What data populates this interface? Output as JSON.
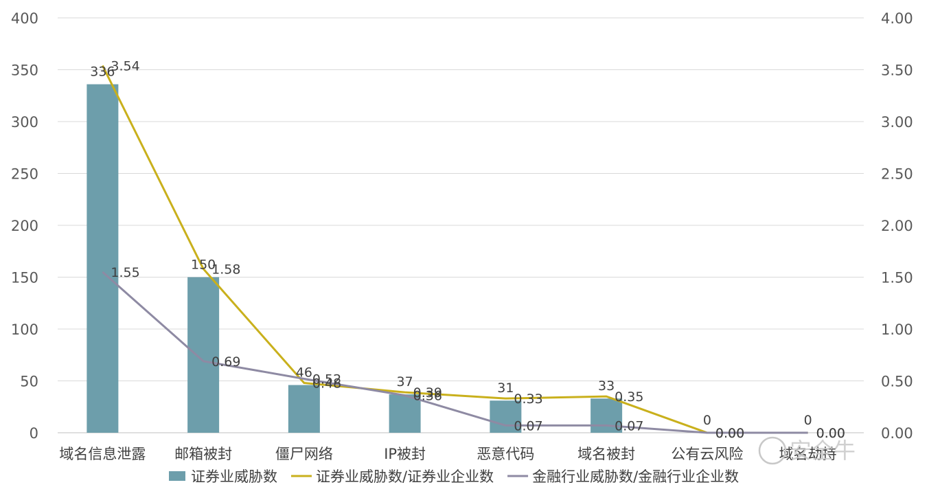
{
  "chart_data": {
    "type": "bar",
    "categories": [
      "域名信息泄露",
      "邮箱被封",
      "僵尸网络",
      "IP被封",
      "恶意代码",
      "域名被封",
      "公有云风险",
      "域名劫持"
    ],
    "series": [
      {
        "name": "证券业威胁数",
        "type": "bar",
        "axis": "left",
        "color": "#6d9eab",
        "values": [
          336,
          150,
          46,
          37,
          31,
          33,
          0,
          0
        ],
        "labels": [
          "336",
          "150",
          "46",
          "37",
          "31",
          "33",
          "0",
          "0"
        ]
      },
      {
        "name": "证券业威胁数/证券业企业数",
        "type": "line",
        "axis": "right",
        "color": "#c9b01c",
        "values": [
          3.54,
          1.58,
          0.48,
          0.39,
          0.33,
          0.35,
          0.0,
          0.0
        ],
        "labels": [
          "3.54",
          "1.58",
          "0.48",
          "0.39",
          "0.33",
          "0.35",
          "0.00",
          "0.00"
        ]
      },
      {
        "name": "金融行业威胁数/金融行业企业数",
        "type": "line",
        "axis": "right",
        "color": "#8e8aa3",
        "values": [
          1.55,
          0.69,
          0.52,
          0.36,
          0.07,
          0.07,
          0.0,
          0.0
        ],
        "labels": [
          "1.55",
          "0.69",
          "0.52",
          "0.36",
          "0.07",
          "0.07",
          "0.00",
          "0.00"
        ]
      }
    ],
    "y_left": {
      "range": [
        0,
        400
      ],
      "ticks": [
        "0",
        "50",
        "100",
        "150",
        "200",
        "250",
        "300",
        "350",
        "400"
      ]
    },
    "y_right": {
      "range": [
        0,
        4
      ],
      "ticks": [
        "0.00",
        "0.50",
        "1.00",
        "1.50",
        "2.00",
        "2.50",
        "3.00",
        "3.50",
        "4.00"
      ]
    },
    "grid": true,
    "legend_position": "bottom",
    "watermark": "安全牛"
  }
}
